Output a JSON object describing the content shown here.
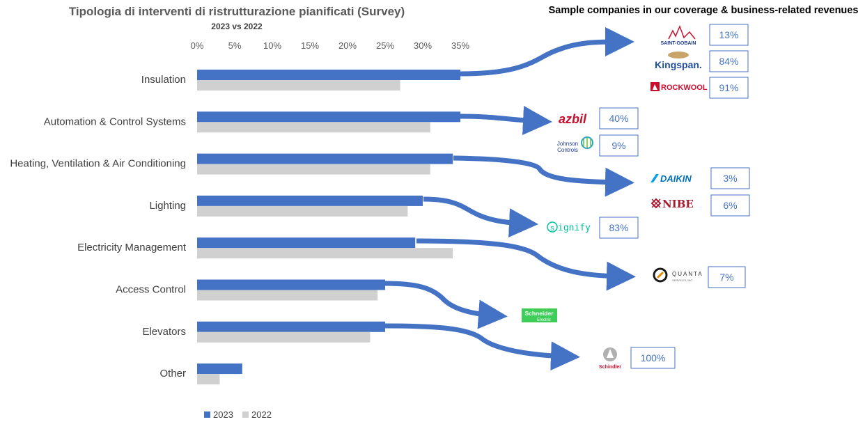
{
  "chart_data": {
    "type": "bar",
    "orientation": "horizontal",
    "title": "Tipologia di interventi di ristrutturazione pianificati (Survey)",
    "subtitle": "2023 vs 2022",
    "categories": [
      "Insulation",
      "Automation & Control Systems",
      "Heating, Ventilation & Air Conditioning",
      "Lighting",
      "Electricity Management",
      "Access Control",
      "Elevators",
      "Other"
    ],
    "series": [
      {
        "name": "2023",
        "color": "#4472C4",
        "values": [
          35,
          35,
          34,
          30,
          29,
          25,
          25,
          6
        ]
      },
      {
        "name": "2022",
        "color": "#D0D0D0",
        "values": [
          27,
          31,
          31,
          28,
          34,
          24,
          23,
          3
        ]
      }
    ],
    "xlim": [
      0,
      35
    ],
    "xticks": [
      "0%",
      "5%",
      "10%",
      "15%",
      "20%",
      "25%",
      "30%",
      "35%"
    ],
    "xticks_position": "top",
    "grid": false,
    "legend_position": "bottom-left"
  },
  "right_panel": {
    "title": "Sample companies in our coverage & business-related revenues",
    "arrow_color": "#4472C4",
    "companies": [
      {
        "name": "SAINT-GOBAIN",
        "revenue": "13%",
        "category": "Insulation"
      },
      {
        "name": "Kingspan.",
        "revenue": "84%",
        "category": "Insulation"
      },
      {
        "name": "ROCKWOOL",
        "revenue": "91%",
        "category": "Insulation"
      },
      {
        "name": "azbil",
        "revenue": "40%",
        "category": "Automation & Control Systems"
      },
      {
        "name_line1": "Johnson",
        "name_line2": "Controls",
        "revenue": "9%",
        "category": "Automation & Control Systems"
      },
      {
        "name": "DAIKIN",
        "revenue": "3%",
        "category": "Heating, Ventilation & Air Conditioning"
      },
      {
        "name": "NIBE",
        "revenue": "6%",
        "category": "Heating, Ventilation & Air Conditioning"
      },
      {
        "name": "signify",
        "revenue": "83%",
        "category": "Lighting"
      },
      {
        "name": "QUANTA",
        "sub": "SERVICES, INC.",
        "revenue": "7%",
        "category": "Electricity Management"
      },
      {
        "name_line1": "Schneider",
        "name_line2": "Electric",
        "revenue": "",
        "category": "Access Control"
      },
      {
        "name": "Schindler",
        "revenue": "100%",
        "category": "Elevators"
      }
    ]
  }
}
